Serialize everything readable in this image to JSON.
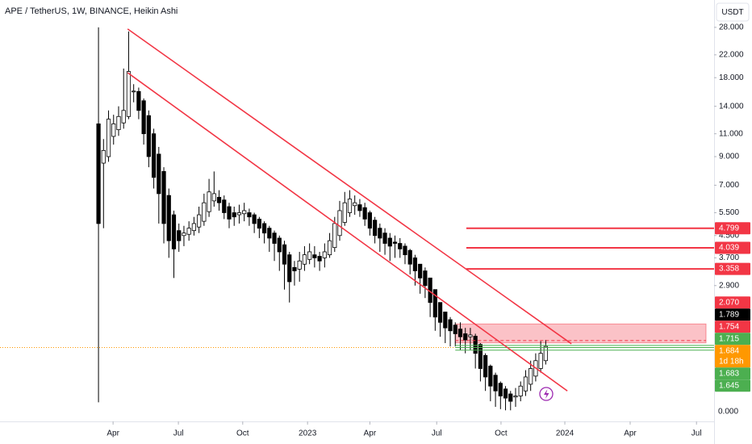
{
  "chart_data": {
    "type": "candlestick",
    "title": "APE / TetherUS, 1W, BINANCE, Heikin Ashi",
    "currency": "USDT",
    "log_scale": true,
    "grid": false,
    "up_color": "#ffffff",
    "down_color": "#000000",
    "x": [
      0,
      1,
      2,
      3,
      4,
      5,
      6,
      7,
      8,
      9,
      10,
      11,
      12,
      13,
      14,
      15,
      16,
      17,
      18,
      19,
      20,
      21,
      22,
      23,
      24,
      25,
      26,
      27,
      28,
      29,
      30,
      31,
      32,
      33,
      34,
      35,
      36,
      37,
      38,
      39,
      40,
      41,
      42,
      43,
      44,
      45,
      46,
      47,
      48,
      49,
      50,
      51,
      52,
      53,
      54,
      55,
      56,
      57,
      58,
      59,
      60,
      61,
      62,
      63,
      64,
      65,
      66,
      67,
      68,
      69,
      70,
      71,
      72,
      73,
      74,
      75,
      76,
      77,
      78,
      79,
      80,
      81,
      82,
      83,
      84,
      85,
      86,
      87,
      88,
      89
    ],
    "open": [
      12,
      8.5,
      9.0,
      10.75,
      11.4,
      12.1,
      12.8,
      15.9,
      15.95,
      14.7,
      12.9,
      11,
      9.2,
      7.9,
      6.4,
      5.4,
      4.7,
      4.5,
      4.55,
      4.7,
      4.85,
      5.1,
      5.55,
      6.1,
      6.3,
      6.15,
      5.8,
      5.5,
      5.4,
      5.45,
      5.5,
      5.4,
      5.2,
      5.0,
      4.8,
      4.6,
      4.4,
      4.15,
      3.8,
      3.4,
      3.35,
      3.5,
      3.65,
      3.8,
      3.75,
      3.7,
      3.8,
      4.05,
      4.5,
      5.05,
      5.5,
      5.85,
      5.9,
      5.75,
      5.5,
      5.15,
      4.8,
      4.6,
      4.4,
      4.25,
      4.2,
      4.1,
      3.95,
      3.7,
      3.5,
      3.3,
      3.1,
      2.8,
      2.5,
      2.3,
      2.15,
      2.05,
      1.98,
      1.9,
      1.85,
      1.86,
      1.73,
      1.57,
      1.43,
      1.32,
      1.23,
      1.17,
      1.12,
      1.09,
      1.1,
      1.15,
      1.22,
      1.31,
      1.4,
      1.5
    ],
    "high": [
      28,
      10.5,
      13.5,
      13,
      14,
      19.5,
      27,
      17,
      16.5,
      15,
      13.5,
      11.5,
      9.8,
      8.2,
      6.8,
      5.6,
      5.0,
      4.9,
      5.1,
      5.3,
      5.8,
      6.5,
      7.4,
      7.9,
      6.7,
      6.4,
      6.0,
      5.8,
      5.9,
      6.0,
      5.7,
      5.5,
      5.3,
      5.1,
      4.9,
      4.7,
      4.5,
      4.3,
      3.9,
      3.6,
      3.9,
      4.1,
      4.2,
      4.1,
      3.9,
      4.2,
      4.6,
      5.3,
      6.1,
      6.6,
      6.7,
      6.4,
      6.2,
      6.0,
      5.6,
      5.3,
      5.0,
      4.8,
      4.6,
      4.5,
      4.4,
      4.2,
      4.0,
      3.8,
      3.5,
      3.4,
      3.1,
      2.8,
      2.5,
      2.3,
      2.2,
      2.1,
      2.1,
      2.0,
      2.0,
      1.9,
      1.75,
      1.6,
      1.45,
      1.35,
      1.25,
      1.2,
      1.15,
      1.18,
      1.25,
      1.38,
      1.5,
      1.6,
      1.78,
      1.8
    ],
    "low": [
      1.04,
      4.8,
      8.6,
      10,
      10.8,
      11.5,
      12.5,
      14.5,
      12.5,
      10,
      8.2,
      6.8,
      5.0,
      4.2,
      3.7,
      3.1,
      3.9,
      4.1,
      4.3,
      4.5,
      4.6,
      4.9,
      5.3,
      5.8,
      5.6,
      5.2,
      4.8,
      4.9,
      5.0,
      5.1,
      4.9,
      4.6,
      4.4,
      4.2,
      3.9,
      3.6,
      3.3,
      2.8,
      2.5,
      2.9,
      3.0,
      3.3,
      3.5,
      3.4,
      3.3,
      3.4,
      3.7,
      3.9,
      4.3,
      4.9,
      5.3,
      5.4,
      5.3,
      4.9,
      4.5,
      4.2,
      3.9,
      3.8,
      3.6,
      3.7,
      3.7,
      3.5,
      3.2,
      2.9,
      2.7,
      2.6,
      2.2,
      1.95,
      1.85,
      1.75,
      1.7,
      1.7,
      1.65,
      1.6,
      1.65,
      1.4,
      1.25,
      1.15,
      1.05,
      1.0,
      0.98,
      0.97,
      0.97,
      1.0,
      1.05,
      1.1,
      1.15,
      1.25,
      1.35,
      1.45
    ],
    "close": [
      5.0,
      9.5,
      12.5,
      12.0,
      12.8,
      13.5,
      19.0,
      16.0,
      13.5,
      11.0,
      9.0,
      7.5,
      6.5,
      5.0,
      4.3,
      4.0,
      4.3,
      4.6,
      4.8,
      5.0,
      5.4,
      6.0,
      6.6,
      6.5,
      6.0,
      5.5,
      5.2,
      5.3,
      5.5,
      5.6,
      5.3,
      5.0,
      4.8,
      4.6,
      4.4,
      4.2,
      3.9,
      3.5,
      3.0,
      3.3,
      3.6,
      3.8,
      3.9,
      3.7,
      3.6,
      3.9,
      4.3,
      5.0,
      5.6,
      6.0,
      6.2,
      6.0,
      5.6,
      5.2,
      4.8,
      4.5,
      4.4,
      4.2,
      4.1,
      4.2,
      4.0,
      3.8,
      3.5,
      3.3,
      3.1,
      2.9,
      2.5,
      2.2,
      2.1,
      2.0,
      1.95,
      1.9,
      1.85,
      1.8,
      1.88,
      1.6,
      1.4,
      1.3,
      1.2,
      1.15,
      1.1,
      1.08,
      1.05,
      1.1,
      1.2,
      1.3,
      1.4,
      1.5,
      1.6,
      1.7
    ],
    "xlim": [
      -19.6,
      122.5
    ],
    "ylim": [
      0.88,
      35.6
    ],
    "xticks": [
      {
        "value": 2.9,
        "label": "Apr"
      },
      {
        "value": 15.9,
        "label": "Jul"
      },
      {
        "value": 28.7,
        "label": "Oct"
      },
      {
        "value": 41.6,
        "label": "2023"
      },
      {
        "value": 54,
        "label": "Apr"
      },
      {
        "value": 67.3,
        "label": "Jul"
      },
      {
        "value": 80.1,
        "label": "Oct"
      },
      {
        "value": 92.8,
        "label": "2024"
      },
      {
        "value": 105.8,
        "label": "Apr"
      },
      {
        "value": 119,
        "label": "Jul"
      }
    ],
    "yticks": [
      {
        "value": 28,
        "label": "28.000"
      },
      {
        "value": 22,
        "label": "22.000"
      },
      {
        "value": 18,
        "label": "18.000"
      },
      {
        "value": 14,
        "label": "14.000"
      },
      {
        "value": 11,
        "label": "11.000"
      },
      {
        "value": 9,
        "label": "9.000"
      },
      {
        "value": 7,
        "label": "7.000"
      },
      {
        "value": 5.5,
        "label": "5.500"
      },
      {
        "value": 4.5,
        "label": "4.500"
      },
      {
        "value": 3.7,
        "label": "3.700"
      },
      {
        "value": 2.9,
        "label": "2.900"
      }
    ],
    "bottom_label": "0.000",
    "trendline_color": "#f23645",
    "trendlines": [
      {
        "x": [
          5.8,
          94.1
        ],
        "y": [
          27.6,
          1.74
        ]
      },
      {
        "x": [
          5.8,
          93.3
        ],
        "y": [
          18.8,
          1.15
        ]
      }
    ],
    "level_start_x": 73.2,
    "zone": {
      "x_start": 71,
      "top": 2.07,
      "bottom": 1.754,
      "color": "#f23645"
    },
    "price_labels": [
      {
        "value": 4.799,
        "label": "4.799",
        "color": "#f23645",
        "line": "level"
      },
      {
        "value": 4.039,
        "label": "4.039",
        "color": "#f23645",
        "line": "level"
      },
      {
        "value": 3.358,
        "label": "3.358",
        "color": "#f23645",
        "line": "level"
      },
      {
        "value": 2.07,
        "label": "2.070",
        "color": "#f23645"
      },
      {
        "value": 1.789,
        "label": "1.789",
        "color": "#000000",
        "line": "dashed"
      },
      {
        "value": 1.754,
        "label": "1.754",
        "color": "#f23645"
      },
      {
        "value": 1.715,
        "label": "1.715",
        "color": "#4caf50",
        "line": "thin"
      },
      {
        "value": 1.684,
        "label": "1.684",
        "color": "#ff9800",
        "line": "dotted",
        "countdown": "1d 18h"
      },
      {
        "value": 1.683,
        "label": "1.683",
        "color": "#4caf50",
        "line": "thin"
      },
      {
        "value": 1.645,
        "label": "1.645",
        "color": "#4caf50",
        "line": "thin"
      }
    ]
  }
}
